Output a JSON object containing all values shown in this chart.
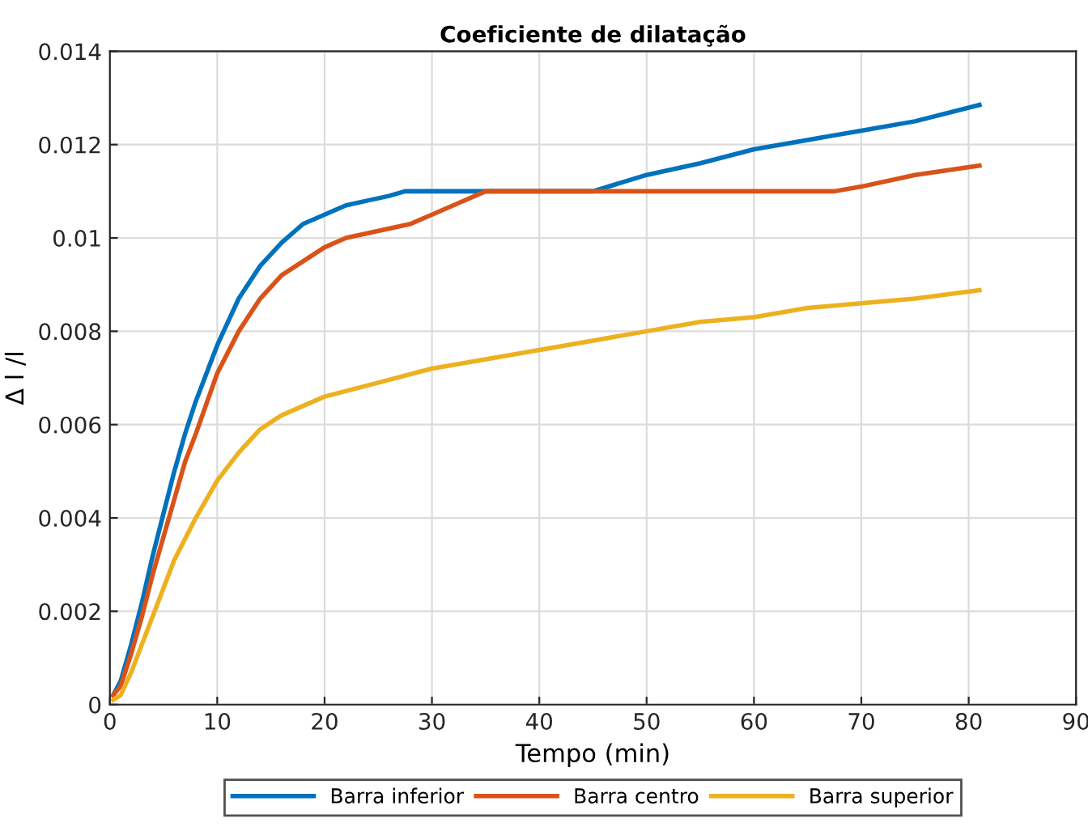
{
  "chart_data": {
    "type": "line",
    "title": "Coeficiente de dilatação",
    "xlabel": "Tempo (min)",
    "ylabel": "Δ l /l",
    "xlim": [
      0,
      90
    ],
    "xticks": [
      0,
      10,
      20,
      30,
      40,
      50,
      60,
      70,
      80,
      90
    ],
    "ylim": [
      0,
      0.014
    ],
    "yticks": [
      0,
      0.002,
      0.004,
      0.006,
      0.008,
      0.01,
      0.012,
      0.014
    ],
    "grid": true,
    "legend": "bottom",
    "line_style": "solid",
    "series": [
      {
        "name": "Barra inferior",
        "color": "#0072bd",
        "x": [
          0.3,
          1,
          2,
          3,
          4,
          5,
          6,
          7,
          8,
          10,
          12,
          14,
          16,
          18,
          20,
          22,
          24,
          26,
          27.5,
          45,
          50,
          55,
          60,
          65,
          70,
          75,
          81
        ],
        "values": [
          0.0002,
          0.0005,
          0.0013,
          0.0022,
          0.0032,
          0.0041,
          0.005,
          0.0058,
          0.0065,
          0.0077,
          0.0087,
          0.0094,
          0.0099,
          0.0103,
          0.0105,
          0.0107,
          0.0108,
          0.0109,
          0.011,
          0.011,
          0.01135,
          0.0116,
          0.0119,
          0.0121,
          0.0123,
          0.0125,
          0.01285
        ]
      },
      {
        "name": "Barra centro",
        "color": "#d95319",
        "x": [
          0.3,
          1,
          2,
          3,
          4,
          5,
          6,
          7,
          8,
          10,
          12,
          14,
          16,
          18,
          20,
          22,
          24,
          26,
          28,
          30,
          32,
          35,
          67.5,
          70,
          75,
          81
        ],
        "values": [
          0.0002,
          0.0004,
          0.0011,
          0.0019,
          0.0028,
          0.0036,
          0.0044,
          0.0052,
          0.0058,
          0.0071,
          0.008,
          0.0087,
          0.0092,
          0.0095,
          0.0098,
          0.01,
          0.0101,
          0.0102,
          0.0103,
          0.0105,
          0.0107,
          0.011,
          0.011,
          0.0111,
          0.01135,
          0.01155
        ]
      },
      {
        "name": "Barra superior",
        "color": "#edb120",
        "x": [
          0.3,
          1,
          2,
          3,
          4,
          5,
          6,
          8,
          10,
          12,
          14,
          16,
          18,
          20,
          25,
          30,
          35,
          40,
          45,
          50,
          55,
          60,
          65,
          70,
          75,
          81
        ],
        "values": [
          0.0001,
          0.0002,
          0.0007,
          0.0013,
          0.0019,
          0.0025,
          0.0031,
          0.004,
          0.0048,
          0.0054,
          0.0059,
          0.0062,
          0.0064,
          0.0066,
          0.0069,
          0.0072,
          0.0074,
          0.0076,
          0.0078,
          0.008,
          0.0082,
          0.0083,
          0.0085,
          0.0086,
          0.0087,
          0.00888
        ]
      }
    ]
  }
}
